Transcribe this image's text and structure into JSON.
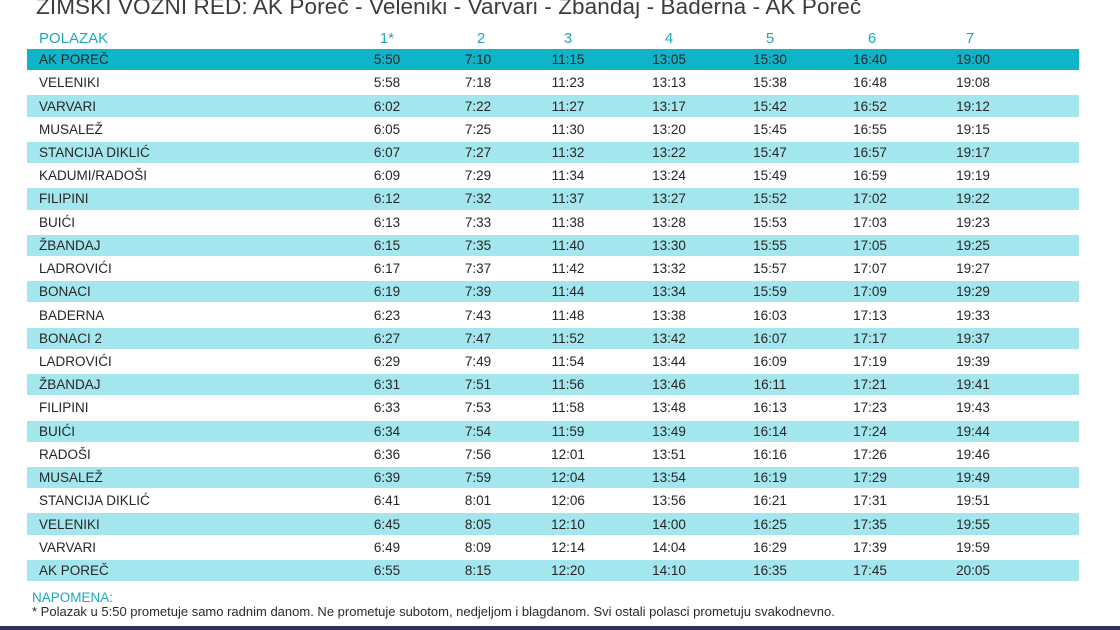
{
  "title": "ZIMSKI VOZNI RED: AK Poreč - Veleniki - Varvari - Žbandaj - Baderna - AK Poreč",
  "header": {
    "label": "POLAZAK",
    "columns": [
      "1*",
      "2",
      "3",
      "4",
      "5",
      "6",
      "7"
    ]
  },
  "rows": [
    {
      "stop": "AK POREČ",
      "times": [
        "5:50",
        "7:10",
        "11:15",
        "13:05",
        "15:30",
        "16:40",
        "19:00"
      ]
    },
    {
      "stop": "VELENIKI",
      "times": [
        "5:58",
        "7:18",
        "11:23",
        "13:13",
        "15:38",
        "16:48",
        "19:08"
      ]
    },
    {
      "stop": "VARVARI",
      "times": [
        "6:02",
        "7:22",
        "11:27",
        "13:17",
        "15:42",
        "16:52",
        "19:12"
      ]
    },
    {
      "stop": "MUSALEŽ",
      "times": [
        "6:05",
        "7:25",
        "11:30",
        "13:20",
        "15:45",
        "16:55",
        "19:15"
      ]
    },
    {
      "stop": "STANCIJA DIKLIĆ",
      "times": [
        "6:07",
        "7:27",
        "11:32",
        "13:22",
        "15:47",
        "16:57",
        "19:17"
      ]
    },
    {
      "stop": "KADUMI/RADOŠI",
      "times": [
        "6:09",
        "7:29",
        "11:34",
        "13:24",
        "15:49",
        "16:59",
        "19:19"
      ]
    },
    {
      "stop": "FILIPINI",
      "times": [
        "6:12",
        "7:32",
        "11:37",
        "13:27",
        "15:52",
        "17:02",
        "19:22"
      ]
    },
    {
      "stop": "BUIĆI",
      "times": [
        "6:13",
        "7:33",
        "11:38",
        "13:28",
        "15:53",
        "17:03",
        "19:23"
      ]
    },
    {
      "stop": "ŽBANDAJ",
      "times": [
        "6:15",
        "7:35",
        "11:40",
        "13:30",
        "15:55",
        "17:05",
        "19:25"
      ]
    },
    {
      "stop": "LADROVIĆI",
      "times": [
        "6:17",
        "7:37",
        "11:42",
        "13:32",
        "15:57",
        "17:07",
        "19:27"
      ]
    },
    {
      "stop": "BONACI",
      "times": [
        "6:19",
        "7:39",
        "11:44",
        "13:34",
        "15:59",
        "17:09",
        "19:29"
      ]
    },
    {
      "stop": "BADERNA",
      "times": [
        "6:23",
        "7:43",
        "11:48",
        "13:38",
        "16:03",
        "17:13",
        "19:33"
      ]
    },
    {
      "stop": "BONACI 2",
      "times": [
        "6:27",
        "7:47",
        "11:52",
        "13:42",
        "16:07",
        "17:17",
        "19:37"
      ]
    },
    {
      "stop": "LADROVIĆI",
      "times": [
        "6:29",
        "7:49",
        "11:54",
        "13:44",
        "16:09",
        "17:19",
        "19:39"
      ]
    },
    {
      "stop": "ŽBANDAJ",
      "times": [
        "6:31",
        "7:51",
        "11:56",
        "13:46",
        "16:11",
        "17:21",
        "19:41"
      ]
    },
    {
      "stop": "FILIPINI",
      "times": [
        "6:33",
        "7:53",
        "11:58",
        "13:48",
        "16:13",
        "17:23",
        "19:43"
      ]
    },
    {
      "stop": "BUIĆI",
      "times": [
        "6:34",
        "7:54",
        "11:59",
        "13:49",
        "16:14",
        "17:24",
        "19:44"
      ]
    },
    {
      "stop": "RADOŠI",
      "times": [
        "6:36",
        "7:56",
        "12:01",
        "13:51",
        "16:16",
        "17:26",
        "19:46"
      ]
    },
    {
      "stop": "MUSALEŽ",
      "times": [
        "6:39",
        "7:59",
        "12:04",
        "13:54",
        "16:19",
        "17:29",
        "19:49"
      ]
    },
    {
      "stop": "STANCIJA DIKLIĆ",
      "times": [
        "6:41",
        "8:01",
        "12:06",
        "13:56",
        "16:21",
        "17:31",
        "19:51"
      ]
    },
    {
      "stop": "VELENIKI",
      "times": [
        "6:45",
        "8:05",
        "12:10",
        "14:00",
        "16:25",
        "17:35",
        "19:55"
      ]
    },
    {
      "stop": "VARVARI",
      "times": [
        "6:49",
        "8:09",
        "12:14",
        "14:04",
        "16:29",
        "17:39",
        "19:59"
      ]
    },
    {
      "stop": "AK POREČ",
      "times": [
        "6:55",
        "8:15",
        "12:20",
        "14:10",
        "16:35",
        "17:45",
        "20:05"
      ]
    }
  ],
  "note": {
    "title": "NAPOMENA:",
    "text": "* Polazak u 5:50 prometuje samo radnim danom. Ne prometuje subotom, nedjeljom i blagdanom. Svi ostali polasci prometuju svakodnevno."
  },
  "colors": {
    "accent": "#1aa8bf",
    "highlight_row": "#0fb4c9",
    "stripe_row": "#a4e6ee"
  }
}
